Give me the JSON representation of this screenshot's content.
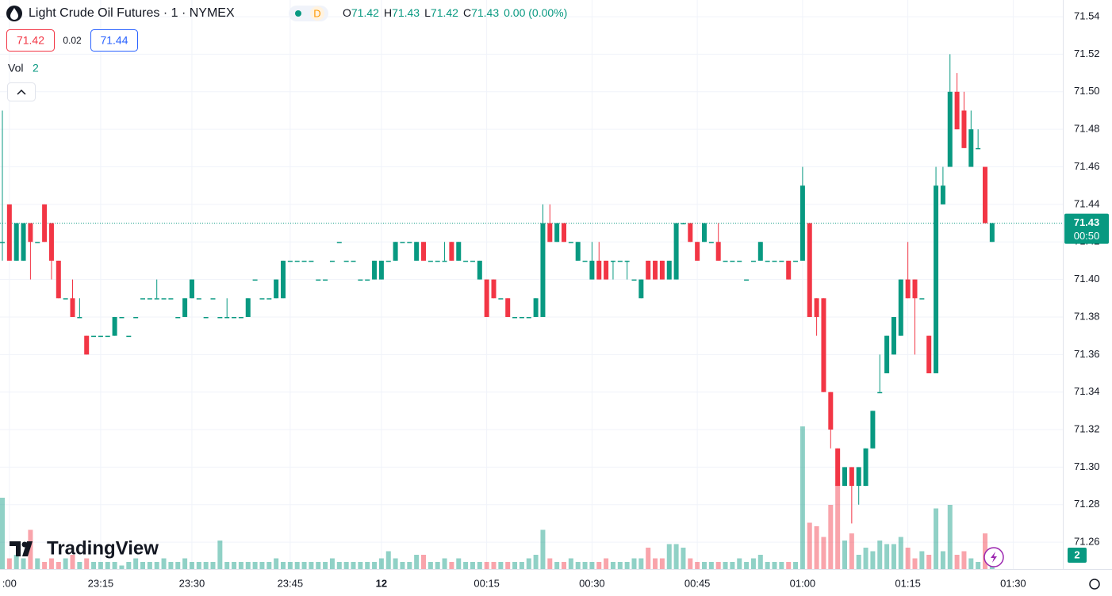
{
  "chart_data": {
    "type": "candlestick",
    "title": "Light Crude Oil Futures · 1 · NYMEX",
    "interval_badge": "D",
    "ohlc_labels": [
      "O",
      "H",
      "L",
      "C"
    ],
    "change": "0.00 (0.00%)",
    "bid": 71.42,
    "spread": 0.02,
    "ask": 71.44,
    "volume_label": "Vol",
    "countdown": "00:50",
    "watermark": "TradingView",
    "up_color": "#089981",
    "down_color": "#f23645",
    "grid": true,
    "ylim": [
      71.2457,
      71.5489
    ],
    "yticks": [
      71.26,
      71.28,
      {
        "value": 71.3,
        "label": "71.30"
      },
      71.32,
      71.34,
      71.36,
      71.38,
      {
        "value": 71.4,
        "label": "71.40"
      },
      71.42,
      71.44,
      71.46,
      71.48,
      {
        "value": 71.5,
        "label": "71.50"
      },
      71.52,
      71.54
    ],
    "categories": [
      null,
      ":00",
      null,
      null,
      null,
      null,
      null,
      null,
      null,
      null,
      null,
      null,
      null,
      null,
      "23:15",
      null,
      null,
      null,
      null,
      null,
      null,
      null,
      null,
      null,
      null,
      null,
      null,
      "23:30",
      null,
      null,
      null,
      null,
      null,
      null,
      null,
      null,
      null,
      null,
      null,
      null,
      null,
      "23:45",
      null,
      null,
      null,
      null,
      null,
      null,
      null,
      null,
      null,
      null,
      null,
      null,
      "12",
      null,
      null,
      null,
      null,
      null,
      null,
      null,
      null,
      null,
      null,
      null,
      null,
      null,
      null,
      "00:15",
      null,
      null,
      null,
      null,
      null,
      null,
      null,
      null,
      null,
      null,
      null,
      null,
      null,
      null,
      "00:30",
      null,
      null,
      null,
      null,
      null,
      null,
      null,
      null,
      null,
      null,
      null,
      null,
      null,
      null,
      "00:45",
      null,
      null,
      null,
      null,
      null,
      null,
      null,
      null,
      null,
      null,
      null,
      null,
      null,
      null,
      "01:00",
      null,
      null,
      null,
      null,
      null,
      null,
      null,
      null,
      null,
      null,
      null,
      null,
      null,
      null,
      "01:15",
      null,
      null,
      null,
      null,
      null,
      null,
      null,
      null,
      null,
      null,
      null,
      null,
      null,
      null,
      "01:30"
    ],
    "open": [
      71.42,
      71.44,
      71.41,
      71.41,
      71.43,
      71.42,
      71.44,
      71.43,
      71.41,
      71.39,
      71.39,
      71.38,
      71.37,
      71.37,
      71.37,
      71.37,
      71.37,
      71.38,
      71.37,
      71.38,
      71.39,
      71.39,
      71.39,
      71.39,
      71.39,
      71.38,
      71.38,
      71.39,
      71.39,
      71.38,
      71.39,
      71.38,
      71.38,
      71.38,
      71.38,
      71.38,
      71.4,
      71.39,
      71.39,
      71.39,
      71.39,
      71.41,
      71.41,
      71.41,
      71.41,
      71.4,
      71.4,
      71.41,
      71.42,
      71.41,
      71.41,
      71.4,
      71.4,
      71.4,
      71.4,
      71.41,
      71.41,
      71.42,
      71.42,
      71.41,
      71.42,
      71.41,
      71.41,
      71.41,
      71.42,
      71.41,
      71.41,
      71.41,
      71.4,
      71.4,
      71.4,
      71.39,
      71.39,
      71.38,
      71.38,
      71.38,
      71.38,
      71.38,
      71.43,
      71.42,
      71.43,
      71.42,
      71.41,
      71.41,
      71.4,
      71.41,
      71.41,
      71.41,
      71.41,
      71.41,
      71.4,
      71.39,
      71.41,
      71.41,
      71.41,
      71.4,
      71.4,
      71.43,
      71.43,
      71.42,
      71.42,
      71.42,
      71.42,
      71.41,
      71.41,
      71.41,
      71.4,
      71.41,
      71.41,
      71.41,
      71.41,
      71.41,
      71.41,
      71.41,
      71.41,
      71.43,
      71.39,
      71.39,
      71.34,
      71.31,
      71.29,
      71.3,
      71.29,
      71.29,
      71.31,
      71.34,
      71.35,
      71.36,
      71.37,
      71.4,
      71.4,
      71.39,
      71.37,
      71.35,
      71.44,
      71.46,
      71.5,
      71.49,
      71.46,
      71.47,
      71.46,
      71.42,
      null,
      null,
      null
    ],
    "high": [
      71.49,
      71.44,
      71.43,
      71.43,
      71.43,
      71.42,
      71.44,
      71.43,
      71.41,
      71.39,
      71.4,
      71.39,
      71.37,
      71.37,
      71.37,
      71.37,
      71.38,
      71.38,
      71.37,
      71.38,
      71.39,
      71.39,
      71.4,
      71.39,
      71.39,
      71.38,
      71.39,
      71.4,
      71.39,
      71.38,
      71.39,
      71.38,
      71.39,
      71.38,
      71.38,
      71.39,
      71.4,
      71.39,
      71.39,
      71.4,
      71.41,
      71.41,
      71.41,
      71.41,
      71.41,
      71.4,
      71.4,
      71.41,
      71.42,
      71.41,
      71.41,
      71.4,
      71.4,
      71.41,
      71.41,
      71.41,
      71.42,
      71.42,
      71.42,
      71.42,
      71.42,
      71.41,
      71.41,
      71.42,
      71.42,
      71.42,
      71.41,
      71.41,
      71.41,
      71.4,
      71.4,
      71.39,
      71.39,
      71.38,
      71.38,
      71.38,
      71.39,
      71.44,
      71.44,
      71.43,
      71.43,
      71.42,
      71.42,
      71.41,
      71.42,
      71.42,
      71.41,
      71.41,
      71.41,
      71.41,
      71.4,
      71.4,
      71.41,
      71.41,
      71.41,
      71.41,
      71.43,
      71.43,
      71.43,
      71.42,
      71.43,
      71.42,
      71.43,
      71.41,
      71.41,
      71.41,
      71.4,
      71.41,
      71.42,
      71.41,
      71.41,
      71.41,
      71.41,
      71.41,
      71.46,
      71.43,
      71.39,
      71.39,
      71.34,
      71.31,
      71.3,
      71.3,
      71.3,
      71.31,
      71.33,
      71.36,
      71.37,
      71.38,
      71.4,
      71.42,
      71.4,
      71.39,
      71.37,
      71.46,
      71.46,
      71.52,
      71.51,
      71.5,
      71.49,
      71.48,
      71.46,
      71.43,
      null,
      null,
      null
    ],
    "low": [
      71.41,
      71.41,
      71.41,
      71.41,
      71.4,
      71.42,
      71.42,
      71.4,
      71.39,
      71.39,
      71.38,
      71.38,
      71.36,
      71.37,
      71.37,
      71.37,
      71.37,
      71.38,
      71.37,
      71.38,
      71.39,
      71.39,
      71.39,
      71.39,
      71.39,
      71.38,
      71.38,
      71.39,
      71.39,
      71.38,
      71.39,
      71.38,
      71.38,
      71.38,
      71.38,
      71.38,
      71.4,
      71.39,
      71.39,
      71.39,
      71.39,
      71.41,
      71.41,
      71.41,
      71.41,
      71.4,
      71.4,
      71.41,
      71.42,
      71.41,
      71.41,
      71.4,
      71.4,
      71.4,
      71.4,
      71.41,
      71.41,
      71.42,
      71.42,
      71.41,
      71.41,
      71.41,
      71.41,
      71.41,
      71.41,
      71.41,
      71.41,
      71.41,
      71.4,
      71.38,
      71.39,
      71.39,
      71.38,
      71.38,
      71.38,
      71.38,
      71.38,
      71.38,
      71.42,
      71.42,
      71.42,
      71.42,
      71.41,
      71.41,
      71.4,
      71.4,
      71.4,
      71.4,
      71.41,
      71.4,
      71.4,
      71.39,
      71.4,
      71.4,
      71.4,
      71.4,
      71.4,
      71.43,
      71.42,
      71.41,
      71.42,
      71.42,
      71.41,
      71.41,
      71.41,
      71.41,
      71.4,
      71.41,
      71.41,
      71.41,
      71.41,
      71.41,
      71.4,
      71.41,
      71.41,
      71.38,
      71.37,
      71.34,
      71.31,
      71.29,
      71.29,
      71.27,
      71.28,
      71.29,
      71.31,
      71.34,
      71.35,
      71.36,
      71.37,
      71.39,
      71.36,
      71.39,
      71.35,
      71.35,
      71.44,
      71.46,
      71.48,
      71.47,
      71.46,
      71.47,
      71.43,
      71.42,
      null,
      null,
      null
    ],
    "close": [
      71.42,
      71.41,
      71.43,
      71.43,
      71.42,
      71.42,
      71.42,
      71.41,
      71.39,
      71.39,
      71.38,
      71.38,
      71.36,
      71.37,
      71.37,
      71.37,
      71.38,
      71.38,
      71.37,
      71.38,
      71.39,
      71.39,
      71.39,
      71.39,
      71.39,
      71.38,
      71.39,
      71.4,
      71.39,
      71.38,
      71.39,
      71.38,
      71.38,
      71.38,
      71.38,
      71.39,
      71.4,
      71.39,
      71.39,
      71.4,
      71.41,
      71.41,
      71.41,
      71.41,
      71.41,
      71.4,
      71.4,
      71.41,
      71.42,
      71.41,
      71.41,
      71.4,
      71.4,
      71.41,
      71.41,
      71.41,
      71.42,
      71.42,
      71.42,
      71.42,
      71.41,
      71.41,
      71.41,
      71.41,
      71.41,
      71.42,
      71.41,
      71.41,
      71.41,
      71.38,
      71.39,
      71.39,
      71.38,
      71.38,
      71.38,
      71.38,
      71.39,
      71.43,
      71.42,
      71.43,
      71.42,
      71.42,
      71.42,
      71.41,
      71.41,
      71.4,
      71.4,
      71.41,
      71.41,
      71.41,
      71.4,
      71.4,
      71.4,
      71.4,
      71.4,
      71.41,
      71.43,
      71.43,
      71.42,
      71.41,
      71.43,
      71.42,
      71.41,
      71.41,
      71.41,
      71.41,
      71.4,
      71.41,
      71.42,
      71.41,
      71.41,
      71.41,
      71.4,
      71.41,
      71.45,
      71.38,
      71.38,
      71.34,
      71.32,
      71.29,
      71.3,
      71.29,
      71.3,
      71.31,
      71.33,
      71.34,
      71.37,
      71.38,
      71.4,
      71.39,
      71.39,
      71.39,
      71.35,
      71.45,
      71.45,
      71.5,
      71.48,
      71.47,
      71.48,
      71.47,
      71.43,
      71.43,
      null,
      null,
      null
    ],
    "volume": [
      20,
      3,
      4,
      3,
      11,
      3,
      2,
      3,
      2,
      3,
      4,
      2,
      3,
      2,
      2,
      2,
      2,
      1,
      2,
      3,
      2,
      2,
      2,
      3,
      2,
      2,
      3,
      2,
      2,
      2,
      2,
      8,
      2,
      2,
      2,
      2,
      2,
      2,
      2,
      3,
      2,
      2,
      2,
      2,
      2,
      2,
      2,
      3,
      2,
      2,
      2,
      2,
      2,
      2,
      3,
      5,
      3,
      2,
      2,
      4,
      4,
      2,
      2,
      3,
      2,
      3,
      2,
      2,
      2,
      2,
      2,
      2,
      2,
      2,
      2,
      3,
      4,
      11,
      3,
      2,
      2,
      3,
      2,
      2,
      2,
      2,
      3,
      2,
      2,
      2,
      3,
      3,
      6,
      3,
      3,
      7,
      7,
      6,
      3,
      2,
      2,
      2,
      2,
      2,
      2,
      3,
      2,
      3,
      4,
      2,
      2,
      2,
      2,
      2,
      40,
      13,
      12,
      9,
      18,
      24,
      8,
      10,
      4,
      6,
      5,
      8,
      7,
      7,
      9,
      6,
      3,
      5,
      4,
      17,
      5,
      18,
      4,
      5,
      3,
      2,
      10,
      2,
      null,
      null,
      null
    ]
  }
}
